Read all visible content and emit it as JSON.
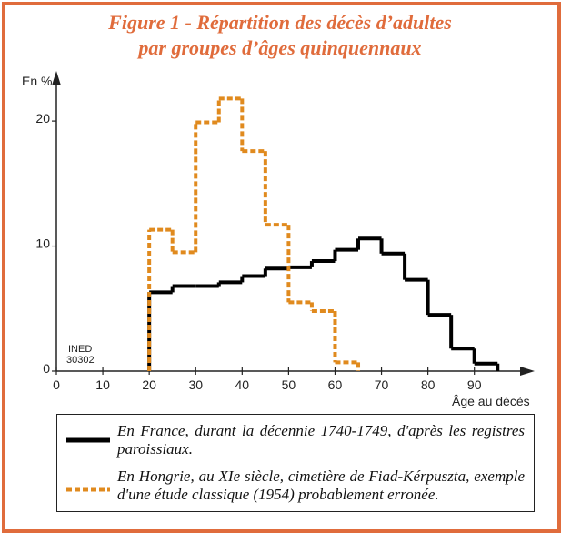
{
  "chart_data": {
    "type": "histogram",
    "title_lines": [
      "Figure 1 - Répartition des décès d’adultes",
      "par groupes d’âges quinquennaux"
    ],
    "y_label": "En %",
    "x_label": "Âge au décès",
    "source_lines": [
      "INED",
      "30302"
    ],
    "xlim": [
      0,
      102
    ],
    "ylim": [
      0,
      23.5
    ],
    "xticks": [
      0,
      10,
      20,
      30,
      40,
      50,
      60,
      70,
      80,
      90
    ],
    "yticks": [
      0,
      10,
      20
    ],
    "series": [
      {
        "name": "En France, durant la décennie 1740-1749, d'après les registres paroissiaux.",
        "color": "#000000",
        "dashed": false,
        "bins": [
          20,
          25,
          30,
          35,
          40,
          45,
          50,
          55,
          60,
          65,
          70,
          75,
          80,
          85,
          90,
          95
        ],
        "values": [
          6.3,
          6.8,
          6.8,
          7.1,
          7.6,
          8.2,
          8.3,
          8.8,
          9.7,
          10.6,
          9.4,
          7.3,
          4.5,
          1.8,
          0.6
        ]
      },
      {
        "name": "En Hongrie, au XIe siècle, cimetière de Fiad-Kérpuszta, exemple d'une étude classique (1954) probablement erronée.",
        "color": "#e08a1e",
        "dashed": true,
        "bins": [
          20,
          25,
          30,
          35,
          40,
          45,
          50,
          55,
          60,
          65
        ],
        "values": [
          11.3,
          9.5,
          19.9,
          21.8,
          17.6,
          11.7,
          5.5,
          4.8,
          0.7
        ]
      }
    ]
  }
}
